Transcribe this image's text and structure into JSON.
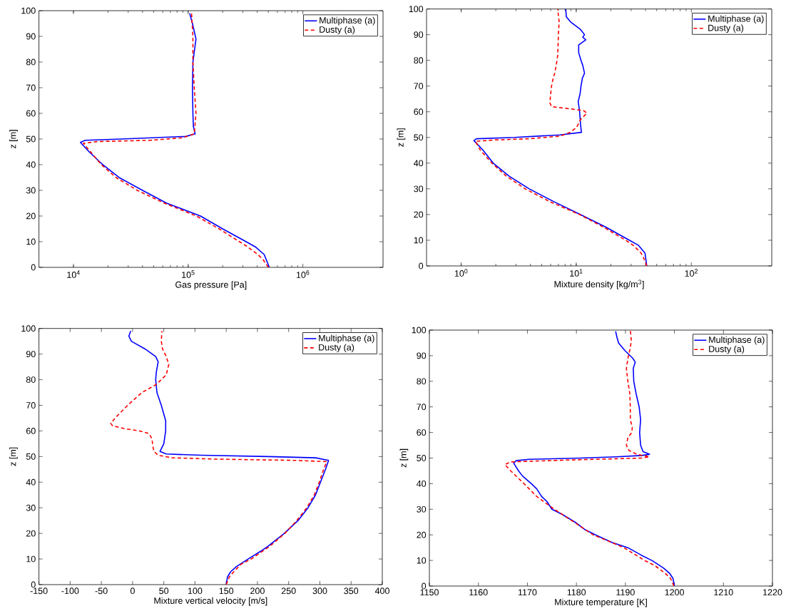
{
  "chart_data": [
    {
      "type": "line",
      "xlabel": "Gas pressure [Pa]",
      "ylabel": "z [m]",
      "log": "x",
      "xlim": [
        5000,
        5000000
      ],
      "ylim": [
        0,
        100
      ],
      "xticks": [
        {
          "value": 10000,
          "label": "10$^{4}$"
        },
        {
          "value": 100000,
          "label": "10$^{5}$"
        },
        {
          "value": 1000000,
          "label": "10$^{6}$"
        }
      ],
      "yticks": [
        0,
        10,
        20,
        30,
        40,
        50,
        60,
        70,
        80,
        90,
        100
      ],
      "legend": "top right",
      "series": [
        {
          "name": "Multiphase (a)",
          "color": "#0000ff",
          "line_style": "solid",
          "x": [
            510000,
            460000,
            385000,
            320000,
            200000,
            128000,
            65000,
            40000,
            25000,
            18000,
            13700,
            11500,
            12700,
            26000,
            95000,
            115000,
            111000,
            110000,
            109000,
            110000,
            117000,
            109000,
            103000
          ],
          "values": [
            0,
            5,
            8,
            10,
            15,
            20,
            25,
            30,
            35,
            40,
            45,
            48.7,
            49.5,
            50,
            51,
            52,
            55,
            60,
            70,
            80,
            89,
            95,
            99
          ]
        },
        {
          "name": "Dusty (a)",
          "color": "#ff0000",
          "line_style": "dashed",
          "x": [
            500000,
            450000,
            405000,
            330000,
            280000,
            186000,
            118000,
            62000,
            36000,
            23500,
            17500,
            14100,
            12200,
            16000,
            47000,
            90000,
            113000,
            117000,
            113000,
            110000,
            110000,
            107000
          ],
          "values": [
            0,
            3,
            5,
            8,
            10,
            15,
            20,
            25,
            30,
            35,
            40,
            45,
            48.3,
            49,
            49.5,
            50.5,
            52,
            60,
            70,
            80,
            90,
            99
          ]
        }
      ]
    },
    {
      "type": "line",
      "xlabel": "Mixture density [kg/m$^{3}$]",
      "ylabel": "z [m]",
      "log": "x",
      "xlim": [
        0.5,
        500
      ],
      "ylim": [
        0,
        100
      ],
      "xticks": [
        {
          "value": 1,
          "label": "10$^{0}$"
        },
        {
          "value": 10,
          "label": "10$^{1}$"
        },
        {
          "value": 100,
          "label": "10$^{2}$"
        }
      ],
      "yticks": [
        0,
        10,
        20,
        30,
        40,
        50,
        60,
        70,
        80,
        90,
        100
      ],
      "legend": "top right",
      "series": [
        {
          "name": "Multiphase (a)",
          "color": "#0000ff",
          "line_style": "solid",
          "x": [
            41,
            39.6,
            34.8,
            29,
            18.3,
            10.9,
            6.4,
            3.9,
            2.6,
            1.9,
            1.55,
            1.29,
            1.36,
            2.9,
            7.2,
            11.1,
            10.9,
            10.7,
            10.4,
            10.8,
            11.0,
            11.3,
            11.8,
            11.4,
            11.0,
            10.5,
            10.5,
            12.1,
            11.4,
            11.8,
            10.9,
            8.9,
            8.2,
            8.1
          ],
          "values": [
            0,
            5,
            8,
            10,
            15,
            20,
            25,
            30,
            35,
            40,
            45,
            48.8,
            49.5,
            50,
            51,
            52,
            55,
            60,
            64,
            67,
            70,
            73,
            75,
            78,
            80,
            83,
            86,
            88,
            89,
            90,
            92,
            95,
            97,
            100
          ]
        },
        {
          "name": "Dusty (a)",
          "color": "#ff0000",
          "line_style": "dashed",
          "x": [
            41,
            38.6,
            36.6,
            31.3,
            26.9,
            17.4,
            10.7,
            5.9,
            3.6,
            2.46,
            1.85,
            1.47,
            1.33,
            1.9,
            3.9,
            7.2,
            8.9,
            10.1,
            10.9,
            12.4,
            11.5,
            6.1,
            5.9,
            6.0,
            6.1,
            6.3,
            6.5,
            6.7,
            6.9,
            7.0,
            7.1,
            6.9
          ],
          "values": [
            0,
            3,
            5,
            8,
            10,
            15,
            20,
            25,
            30,
            35,
            40,
            45,
            48.5,
            49,
            49.5,
            50.5,
            52,
            54,
            57,
            59.5,
            60.5,
            62,
            63.5,
            67,
            70,
            73,
            75,
            78,
            82,
            90,
            95,
            100
          ]
        }
      ]
    },
    {
      "type": "line",
      "xlabel": "Mixture vertical velocity [m/s]",
      "ylabel": "z [m]",
      "xlim": [
        -150,
        400
      ],
      "ylim": [
        0,
        100
      ],
      "xticks": [
        -150,
        -100,
        -50,
        0,
        50,
        100,
        150,
        200,
        250,
        300,
        350,
        400
      ],
      "yticks": [
        0,
        10,
        20,
        30,
        40,
        50,
        60,
        70,
        80,
        90,
        100
      ],
      "legend": "top right",
      "series": [
        {
          "name": "Multiphase (a)",
          "color": "#0000ff",
          "line_style": "solid",
          "x": [
            150,
            152,
            157,
            166,
            185,
            205,
            217,
            243,
            265,
            281,
            293,
            301,
            309,
            314,
            293,
            217,
            110,
            54,
            44,
            50,
            53,
            53,
            46,
            39,
            37,
            38,
            41,
            37,
            20,
            -2,
            -6,
            -3
          ],
          "values": [
            0,
            3,
            5,
            7,
            10,
            13,
            15,
            20,
            25,
            30,
            35,
            40,
            45,
            48.5,
            49.5,
            50,
            50.5,
            51,
            52,
            55,
            60,
            64,
            70,
            75,
            80,
            83,
            87,
            89,
            92,
            95,
            97,
            99
          ]
        },
        {
          "name": "Dusty (a)",
          "color": "#ff0000",
          "line_style": "dashed",
          "x": [
            150,
            155,
            162,
            174,
            190,
            220,
            244,
            263,
            279,
            291,
            299,
            306,
            311,
            260,
            131,
            63,
            41,
            34,
            32,
            31,
            26,
            11,
            -15,
            -32,
            -35,
            -28,
            -8,
            15,
            37,
            46,
            54,
            58,
            54,
            48,
            46,
            47
          ],
          "values": [
            0,
            3,
            5,
            8,
            10,
            15,
            20,
            25,
            30,
            35,
            40,
            45,
            48,
            48.5,
            49,
            49.5,
            50.5,
            52,
            55,
            57,
            59,
            60,
            61,
            62,
            63,
            65,
            70,
            75,
            78,
            80,
            82,
            86,
            89,
            92,
            95,
            99
          ]
        }
      ]
    },
    {
      "type": "line",
      "xlabel": "Mixture temperature [K]",
      "ylabel": "z [m]",
      "xlim": [
        1150,
        1220
      ],
      "ylim": [
        0,
        100
      ],
      "xticks": [
        1150,
        1160,
        1170,
        1180,
        1190,
        1200,
        1210,
        1220
      ],
      "yticks": [
        0,
        10,
        20,
        30,
        40,
        50,
        60,
        70,
        80,
        90,
        100
      ],
      "legend": "top right",
      "series": [
        {
          "name": "Multiphase (a)",
          "color": "#0000ff",
          "line_style": "solid",
          "x": [
            1200.0,
            1199.7,
            1199.0,
            1197.8,
            1195.4,
            1193.3,
            1190.5,
            1187.3,
            1183.9,
            1181.8,
            1179.7,
            1177.1,
            1175.0,
            1174.0,
            1172.9,
            1171.9,
            1170.8,
            1169.0,
            1168.2,
            1167.2,
            1167.7,
            1170.3,
            1180.8,
            1188.1,
            1193.3,
            1194.9,
            1193.6,
            1193.1,
            1192.9,
            1193.1,
            1192.8,
            1192.2,
            1191.7,
            1191.6,
            1192.0,
            1191.5,
            1189.9,
            1188.6,
            1188.3,
            1188.0
          ],
          "values": [
            0,
            3,
            5,
            7,
            10,
            12,
            15,
            17,
            20,
            22,
            25,
            28,
            30,
            33,
            35,
            38,
            40,
            43,
            45,
            48,
            49,
            49.5,
            50,
            50.5,
            51,
            51.5,
            52.5,
            55,
            60,
            65,
            70,
            75,
            80,
            85,
            87.5,
            89,
            92,
            95,
            97,
            99.5
          ]
        },
        {
          "name": "Dusty (a)",
          "color": "#ff0000",
          "line_style": "dashed",
          "x": [
            1199.9,
            1199.2,
            1198.1,
            1196.0,
            1193.9,
            1189.7,
            1186.0,
            1183.4,
            1179.5,
            1175.5,
            1171.9,
            1169.3,
            1166.6,
            1165.4,
            1166.6,
            1177.6,
            1193.3,
            1194.9,
            1192.3,
            1190.7,
            1190.2,
            1190.5,
            1191.3,
            1191.4,
            1191.0,
            1191.0,
            1190.9,
            1190.5,
            1190.2,
            1190.6,
            1191.0,
            1191.2,
            1191.0
          ],
          "values": [
            0,
            3,
            5,
            8,
            10,
            15,
            18,
            20,
            25,
            30,
            35,
            40,
            45,
            47.5,
            48.5,
            49.2,
            50,
            50.5,
            51.5,
            53,
            55,
            58,
            60,
            62,
            65,
            70,
            75,
            80,
            85,
            90,
            93,
            96,
            100
          ]
        }
      ]
    }
  ]
}
